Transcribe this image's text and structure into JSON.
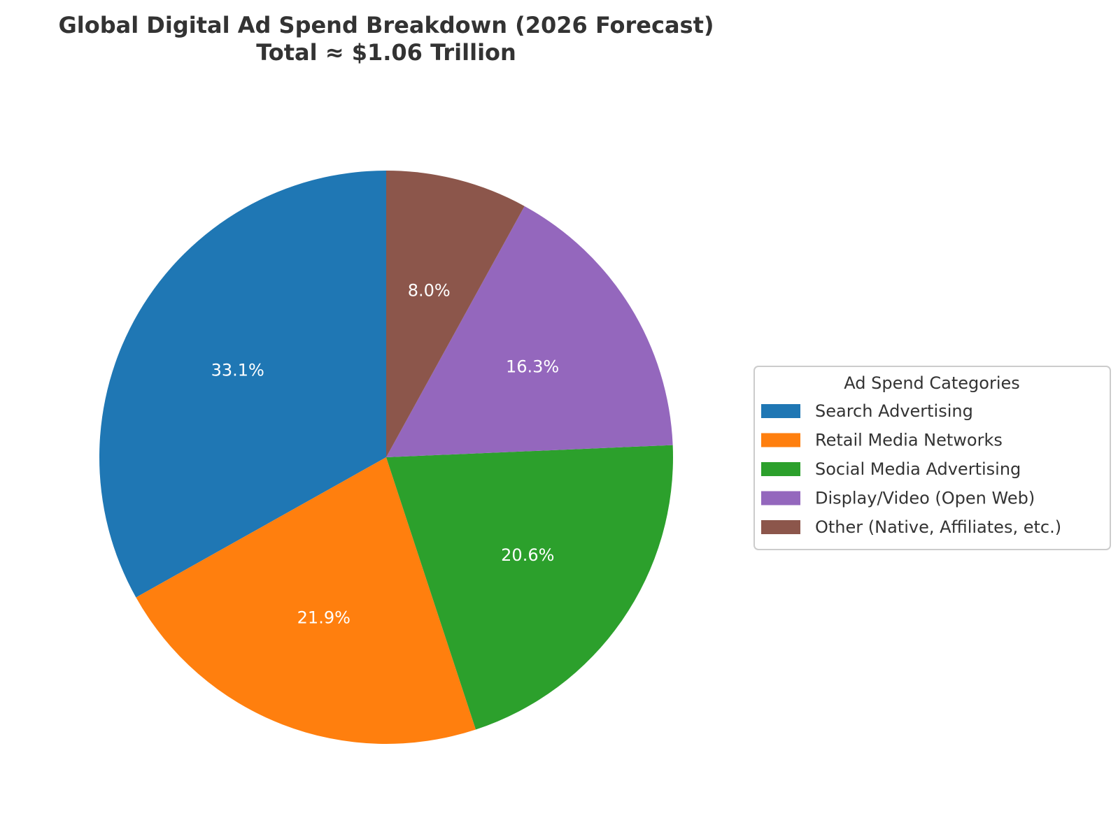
{
  "chart_data": {
    "type": "pie",
    "title": "Global Digital Ad Spend Breakdown (2026 Forecast)",
    "subtitle": "Total ≈ $1.06 Trillion",
    "legend_title": "Ad Spend Categories",
    "legend_position": "center-right",
    "start_angle_deg": 90,
    "direction": "counterclockwise",
    "slices": [
      {
        "label": "Search Advertising",
        "value": 33.1,
        "pct_label": "33.1%",
        "color": "#1f77b4"
      },
      {
        "label": "Retail Media Networks",
        "value": 21.9,
        "pct_label": "21.9%",
        "color": "#ff7f0e"
      },
      {
        "label": "Social Media Advertising",
        "value": 20.6,
        "pct_label": "20.6%",
        "color": "#2ca02c"
      },
      {
        "label": "Display/Video (Open Web)",
        "value": 16.3,
        "pct_label": "16.3%",
        "color": "#9467bd"
      },
      {
        "label": "Other (Native, Affiliates, etc.)",
        "value": 8.0,
        "pct_label": "8.0%",
        "color": "#8c564b"
      }
    ]
  }
}
